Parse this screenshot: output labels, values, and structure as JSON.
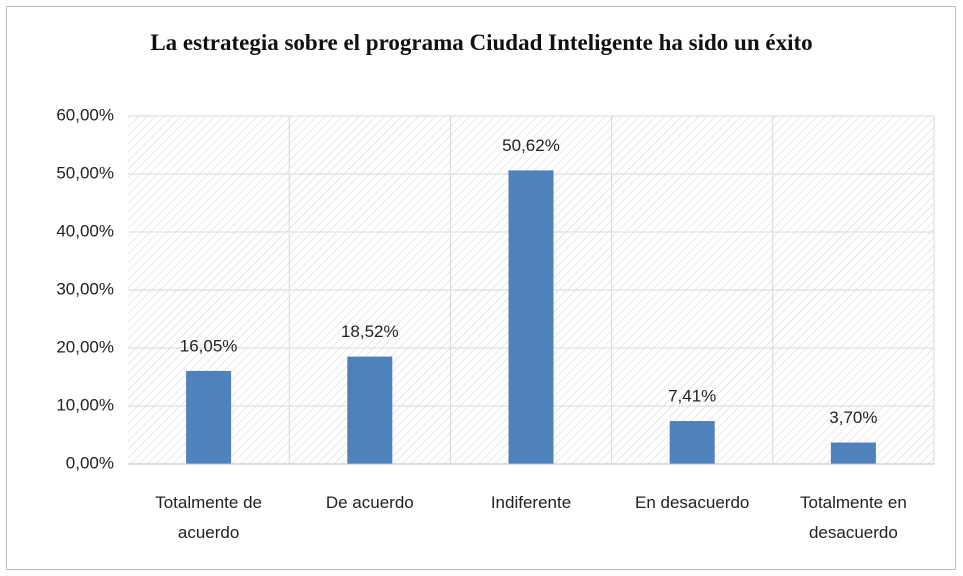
{
  "chart_data": {
    "type": "bar",
    "title": "La estrategia sobre el programa Ciudad Inteligente ha sido un éxito",
    "categories": [
      "Totalmente de acuerdo",
      "De acuerdo",
      "Indiferente",
      "En desacuerdo",
      "Totalmente en desacuerdo"
    ],
    "values": [
      16.05,
      18.52,
      50.62,
      7.41,
      3.7
    ],
    "value_labels": [
      "16,05%",
      "18,52%",
      "50,62%",
      "7,41%",
      "3,70%"
    ],
    "color": "#4f81bd",
    "ylim": [
      0,
      60
    ],
    "yticks": [
      {
        "value": 0,
        "label": "0,00%"
      },
      {
        "value": 10,
        "label": "10,00%"
      },
      {
        "value": 20,
        "label": "20,00%"
      },
      {
        "value": 30,
        "label": "30,00%"
      },
      {
        "value": 40,
        "label": "40,00%"
      },
      {
        "value": 50,
        "label": "50,00%"
      },
      {
        "value": 60,
        "label": "60,00%"
      }
    ],
    "grid": true
  }
}
